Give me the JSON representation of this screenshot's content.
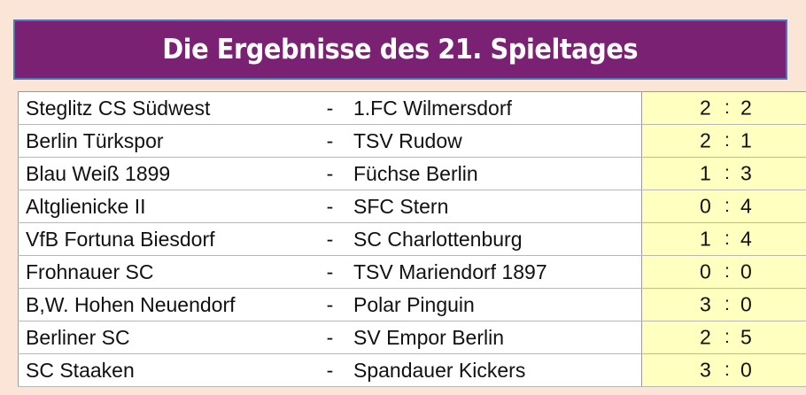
{
  "header": {
    "title": "Die Ergebnisse des 21. Spieltages"
  },
  "matches": [
    {
      "home": "Steglitz CS Südwest",
      "sep": "-",
      "away": "1.FC Wilmersdorf",
      "home_goals": "2",
      "colon": ":",
      "away_goals": "2"
    },
    {
      "home": "Berlin Türkspor",
      "sep": "-",
      "away": "TSV Rudow",
      "home_goals": "2",
      "colon": ":",
      "away_goals": "1"
    },
    {
      "home": "Blau Weiß 1899",
      "sep": "-",
      "away": "Füchse Berlin",
      "home_goals": "1",
      "colon": ":",
      "away_goals": "3"
    },
    {
      "home": "Altglienicke II",
      "sep": "-",
      "away": "SFC Stern",
      "home_goals": "0",
      "colon": ":",
      "away_goals": "4"
    },
    {
      "home": "VfB Fortuna Biesdorf",
      "sep": "-",
      "away": "SC Charlottenburg",
      "home_goals": "1",
      "colon": ":",
      "away_goals": "4"
    },
    {
      "home": "Frohnauer SC",
      "sep": "-",
      "away": "TSV Mariendorf 1897",
      "home_goals": "0",
      "colon": ":",
      "away_goals": "0"
    },
    {
      "home": "B,W. Hohen Neuendorf",
      "sep": "-",
      "away": "Polar Pinguin",
      "home_goals": "3",
      "colon": ":",
      "away_goals": "0"
    },
    {
      "home": "Berliner SC",
      "sep": "-",
      "away": "SV Empor Berlin",
      "home_goals": "2",
      "colon": ":",
      "away_goals": "5"
    },
    {
      "home": "SC Staaken",
      "sep": "-",
      "away": "Spandauer Kickers",
      "home_goals": "3",
      "colon": ":",
      "away_goals": "0"
    }
  ],
  "colors": {
    "page_background": "#fbe5d6",
    "banner_background": "#7b2173",
    "banner_border": "#4f76b6",
    "score_background": "#ffffc0"
  }
}
